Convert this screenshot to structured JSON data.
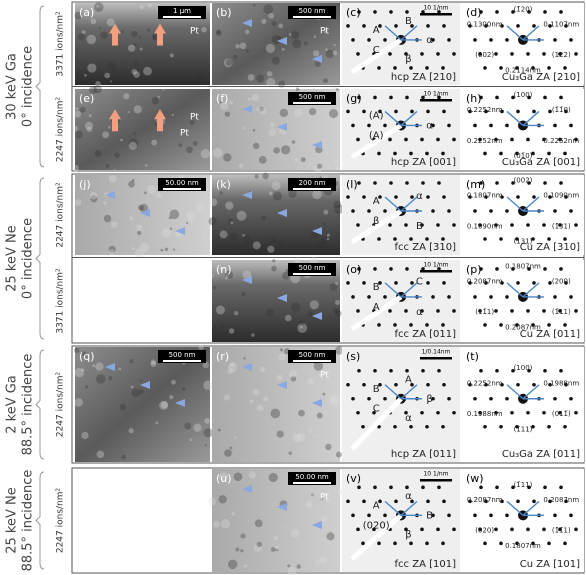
{
  "groups": [
    {
      "label": "30 keV Ga",
      "sublabel": "0° incidence"
    },
    {
      "label": "25 keV Ne",
      "sublabel": "0° incidence"
    },
    {
      "label": "2 keV Ga",
      "sublabel": "88.5° incidence"
    },
    {
      "label": "25 keV Ne",
      "sublabel": "88.5° incidence"
    }
  ],
  "rows": [
    {
      "dose": "3371 ions/nm²",
      "panels": [
        {
          "letter": "(a)",
          "kind": "tem",
          "scale": "1 µm",
          "notes": [
            "Pt"
          ]
        },
        {
          "letter": "(b)",
          "kind": "tem",
          "scale": "500 nm",
          "notes": [
            "Pt"
          ]
        },
        {
          "letter": "(c)",
          "kind": "dp",
          "scale": "10 1/nm",
          "zone": "hcp ZA [210]",
          "notes": [
            "A",
            "B",
            "α",
            "β",
            "C"
          ]
        },
        {
          "letter": "(d)",
          "kind": "dp",
          "zone": "Cu₃Ga ZA [210]",
          "notes": [
            "0.1300nm",
            "(1̄20)",
            "0.1107nm",
            "(122)",
            "0.2114nm",
            "(002)"
          ]
        }
      ]
    },
    {
      "dose": "2247 ions/nm²",
      "panels": [
        {
          "letter": "(e)",
          "kind": "tem",
          "notes": [
            "Pt",
            "Pt"
          ]
        },
        {
          "letter": "(f)",
          "kind": "tem",
          "scale": "500 nm",
          "notes": []
        },
        {
          "letter": "(g)",
          "kind": "dp",
          "scale": "10 1/nm",
          "zone": "hcp ZA [001]",
          "notes": [
            "(A)",
            "α",
            "(A)"
          ]
        },
        {
          "letter": "(h)",
          "kind": "dp",
          "zone": "Cu₃Ga ZA [001]",
          "notes": [
            "0.2252nm",
            "(100)",
            "(1̄1̄0)",
            "0.2252nm",
            "(01̄0)",
            "0.2252nm"
          ]
        }
      ]
    },
    {
      "dose": "2247 ions/nm²",
      "panels": [
        {
          "letter": "(j)",
          "kind": "tem",
          "scale": "50.00 nm",
          "notes": []
        },
        {
          "letter": "(k)",
          "kind": "tem",
          "scale": "200 nm",
          "notes": []
        },
        {
          "letter": "(l)",
          "kind": "dp",
          "zone": "fcc ZA [310]",
          "notes": [
            "A",
            "α",
            "B",
            "β"
          ]
        },
        {
          "letter": "(m)",
          "kind": "dp",
          "zone": "Cu ZA [310]",
          "notes": [
            "0.1807nm",
            "(002)",
            "0.1090nm",
            "(1̄31)",
            "(131)",
            "0.1090nm"
          ]
        }
      ]
    },
    {
      "dose": "3371 ions/nm²",
      "panels": [
        {
          "letter": "(n)",
          "kind": "tem",
          "scale": "500 nm",
          "notes": []
        },
        {
          "letter": "(o)",
          "kind": "dp",
          "scale": "10 1/nm",
          "zone": "fcc ZA [011]",
          "notes": [
            "B",
            "C",
            "α",
            "A"
          ]
        },
        {
          "letter": "(p)",
          "kind": "dp",
          "zone": "Cu ZA [011]",
          "notes": [
            "0.2087nm",
            "0.1807nm",
            "(200)",
            "(1̄11)",
            "0.2087nm",
            "(11̄1)"
          ]
        }
      ]
    },
    {
      "dose": "2247 ions/nm²",
      "panels": [
        {
          "letter": "(q)",
          "kind": "tem",
          "scale": "500 nm",
          "notes": []
        },
        {
          "letter": "(r)",
          "kind": "tem",
          "scale": "500 nm",
          "notes": [
            "Pt"
          ]
        },
        {
          "letter": "(s)",
          "kind": "dp",
          "scale": "1/0.14nm",
          "zone": "hcp ZA [011]",
          "notes": [
            "B",
            "A",
            "β",
            "α",
            "C"
          ]
        },
        {
          "letter": "(t)",
          "kind": "dp",
          "zone": "Cu₃Ga ZA [011]",
          "notes": [
            "0.2252nm",
            "(100)",
            "0.1988nm",
            "(011̄)",
            "(1̄11)",
            "0.1988nm"
          ]
        }
      ]
    },
    {
      "dose": "2247 ions/nm²",
      "panels": [
        {
          "letter": "(u)",
          "kind": "tem",
          "scale": "50.00 nm",
          "notes": [
            "Pt"
          ]
        },
        {
          "letter": "(v)",
          "kind": "dp",
          "scale": "10 1/nm",
          "zone": "fcc ZA [101]",
          "notes": [
            "A",
            "α",
            "B",
            "β",
            "(020)"
          ]
        },
        {
          "letter": "(w)",
          "kind": "dp",
          "zone": "Cu ZA [101]",
          "notes": [
            "0.2087nm",
            "(1̄11)",
            "0.2087nm",
            "(1̄1̄1)",
            "0.1807nm",
            "(020)"
          ]
        }
      ]
    }
  ]
}
